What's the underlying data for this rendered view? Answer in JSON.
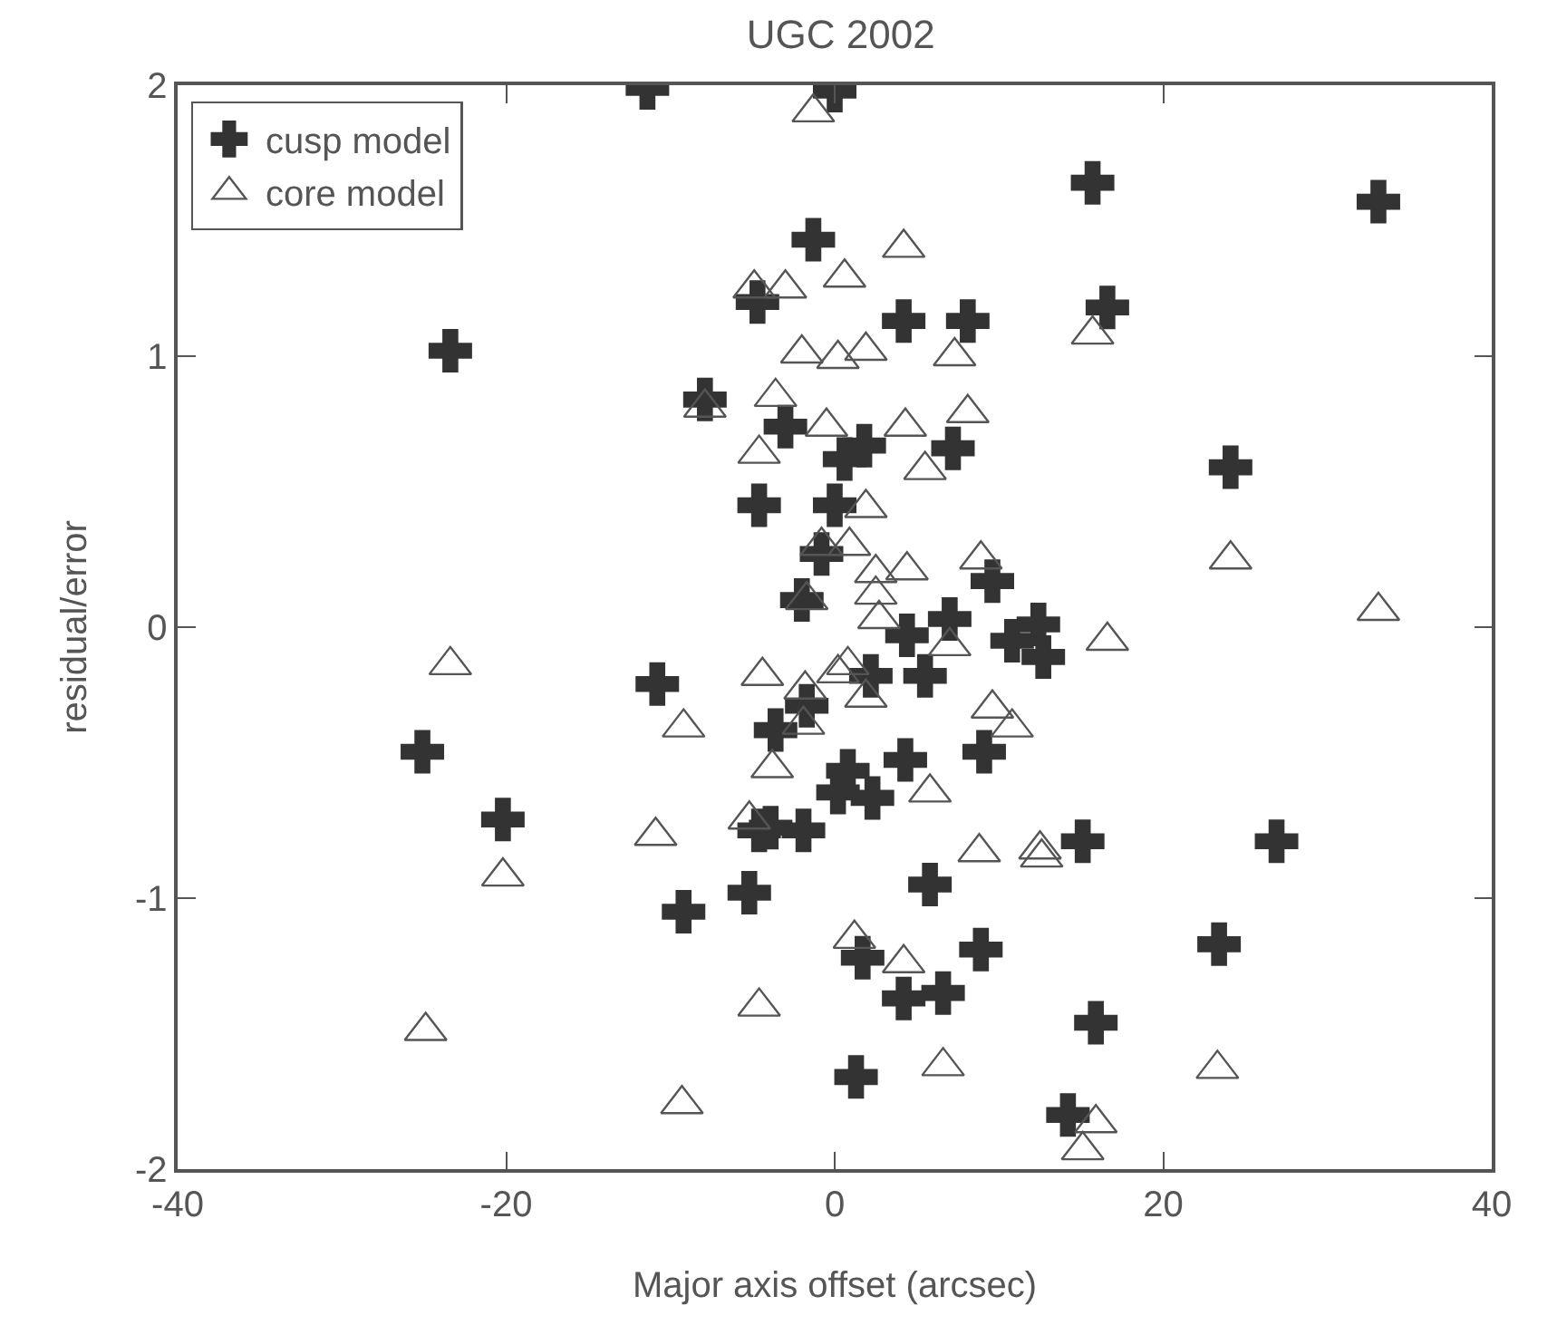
{
  "chart_data": {
    "type": "scatter",
    "title": "UGC 2002",
    "xlabel": "Major axis offset (arcsec)",
    "ylabel": "residual/error",
    "xlim": [
      -40,
      40
    ],
    "xticks": [
      -40,
      -20,
      0,
      20,
      40
    ],
    "ylim": [
      -2,
      2
    ],
    "yticks": [
      -2,
      -1,
      0,
      1,
      2
    ],
    "grid": false,
    "legend": "top left",
    "series": [
      {
        "name": "cusp model",
        "color": "#333333",
        "marker": "cross",
        "x": [
          -11.4,
          0,
          -1.3,
          -4.7,
          -23.4,
          -7.9,
          -3.0,
          -4.6,
          0.0,
          -0.8,
          -2.0,
          15.7,
          33.1,
          16.6,
          4.2,
          8.1,
          0.6,
          1.8,
          7.2,
          24.1,
          9.6,
          7.0,
          12.4,
          -10.8,
          -25.1,
          -3.6,
          -1.7,
          0.2,
          -20.2,
          -4.6,
          -3.9,
          -1.9,
          -9.2,
          -5.2,
          4.4,
          10.8,
          12.7,
          2.2,
          5.5,
          9.1,
          4.3,
          0.8,
          2.3,
          15.1,
          26.9,
          5.8,
          23.4,
          8.9,
          1.7,
          4.2,
          6.6,
          15.9,
          1.3,
          14.2
        ],
        "values": [
          1.99,
          1.98,
          1.43,
          1.2,
          1.02,
          0.84,
          0.74,
          0.45,
          0.45,
          0.27,
          0.1,
          1.64,
          1.57,
          1.18,
          1.13,
          1.13,
          0.62,
          0.67,
          0.66,
          0.59,
          0.17,
          0.03,
          0.01,
          -0.21,
          -0.46,
          -0.38,
          -0.29,
          -0.61,
          -0.71,
          -0.75,
          -0.74,
          -0.75,
          -1.05,
          -0.98,
          -0.03,
          -0.05,
          -0.11,
          -0.18,
          -0.18,
          -0.46,
          -0.49,
          -0.53,
          -0.63,
          -0.79,
          -0.79,
          -0.95,
          -1.17,
          -1.19,
          -1.22,
          -1.37,
          -1.35,
          -1.46,
          -1.66,
          -1.8
        ]
      },
      {
        "name": "core model",
        "color": "#555555",
        "marker": "triangle",
        "x": [
          -1.3,
          -4.9,
          -3.0,
          -2.0,
          -3.6,
          -7.9,
          -0.5,
          -4.6,
          -0.8,
          -1.7,
          4.2,
          0.6,
          15.7,
          0.2,
          1.9,
          7.3,
          4.3,
          8.1,
          5.5,
          1.9,
          0.9,
          2.5,
          4.4,
          8.9,
          24.1,
          33.1,
          2.5,
          2.7,
          16.6,
          -23.4,
          -4.4,
          -1.8,
          0.2,
          -9.2,
          -1.9,
          -3.8,
          -5.2,
          -10.9,
          -20.2,
          -4.6,
          -24.9,
          -9.3,
          7.0,
          0.8,
          1.9,
          9.6,
          10.8,
          5.8,
          8.8,
          12.5,
          12.6,
          1.2,
          4.2,
          6.6,
          23.3,
          15.9,
          15.1
        ],
        "values": [
          1.9,
          1.25,
          1.25,
          1.01,
          0.85,
          0.81,
          0.74,
          0.64,
          0.3,
          0.1,
          1.4,
          1.29,
          1.08,
          0.99,
          1.02,
          1.0,
          0.74,
          0.79,
          0.58,
          0.44,
          0.3,
          0.2,
          0.21,
          0.25,
          0.25,
          0.06,
          0.12,
          0.03,
          -0.05,
          -0.14,
          -0.18,
          -0.23,
          -0.17,
          -0.37,
          -0.36,
          -0.52,
          -0.71,
          -0.77,
          -0.92,
          -1.4,
          -1.49,
          -1.76,
          -0.07,
          -0.14,
          -0.26,
          -0.3,
          -0.37,
          -0.61,
          -0.83,
          -0.82,
          -0.85,
          -1.15,
          -1.24,
          -1.62,
          -1.63,
          -1.83,
          -1.93
        ]
      }
    ]
  }
}
